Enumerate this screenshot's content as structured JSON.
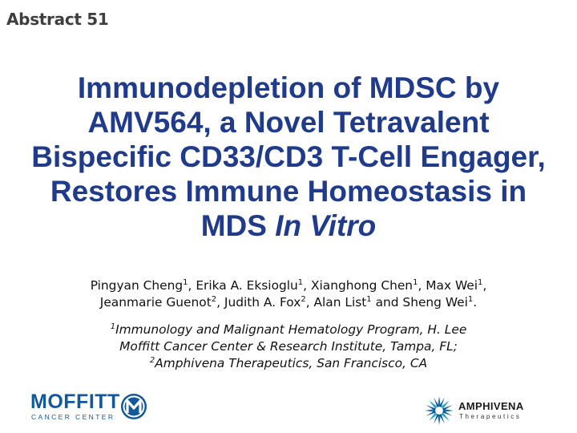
{
  "abstract_label": "Abstract 51",
  "title": {
    "line1": "Immunodepletion of MDSC by",
    "line2": "AMV564, a Novel Tetravalent",
    "line3": "Bispecific CD33/CD3 T-Cell Engager,",
    "line4": "Restores Immune Homeostasis in",
    "line5_prefix": "MDS ",
    "line5_italic": "In Vitro"
  },
  "authors": [
    {
      "name": "Pingyan Cheng",
      "sup": "1"
    },
    {
      "name": "Erika A. Eksioglu",
      "sup": "1"
    },
    {
      "name": "Xianghong Chen",
      "sup": "1"
    },
    {
      "name": "Max Wei",
      "sup": "1"
    },
    {
      "name": "Jeanmarie Guenot",
      "sup": "2"
    },
    {
      "name": "Judith A. Fox",
      "sup": "2"
    },
    {
      "name": "Alan List",
      "sup": "1"
    },
    {
      "name": "Sheng Wei",
      "sup": "1"
    }
  ],
  "affiliations": {
    "sup1": "1",
    "line1": "Immunology and Malignant Hematology Program, H. Lee",
    "line2": "Moffitt Cancer Center & Research Institute, Tampa, FL;",
    "sup2": "2",
    "line3": "Amphivena Therapeutics, San Francisco, CA"
  },
  "logos": {
    "moffitt_word": "MOFFITT",
    "moffitt_sub": "CANCER CENTER",
    "moffitt_color": "#12589a",
    "amphivena_word": "AMPHIVENA",
    "amphivena_sub": "Therapeutics",
    "amphivena_color": "#1a6fb0"
  },
  "colors": {
    "title": "#1f3b8a",
    "abstract_label": "#3f3f3f"
  }
}
